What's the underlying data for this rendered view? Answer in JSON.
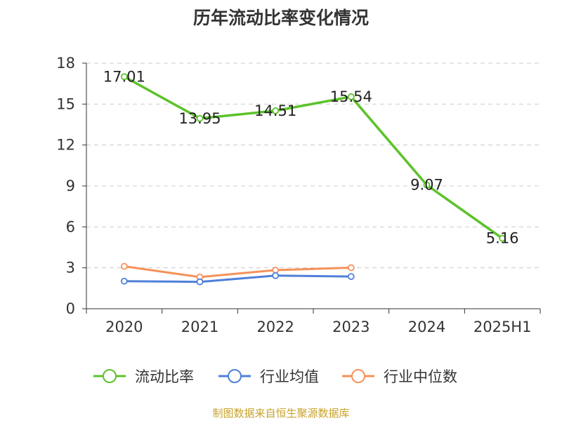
{
  "title": "历年流动比率变化情况",
  "source": "制图数据来自恒生聚源数据库",
  "chart_data": {
    "type": "line",
    "categories": [
      "2020",
      "2021",
      "2022",
      "2023",
      "2024",
      "2025H1"
    ],
    "ylim": [
      0,
      18
    ],
    "yticks": [
      0,
      3,
      6,
      9,
      12,
      15,
      18
    ],
    "grid": true,
    "legend_position": "bottom",
    "series": [
      {
        "name": "流动比率",
        "color": "#5cc22b",
        "values": [
          17.01,
          13.95,
          14.51,
          15.54,
          9.07,
          5.16
        ],
        "labels": [
          "17.01",
          "13.95",
          "14.51",
          "15.54",
          "9.07",
          "5.16"
        ]
      },
      {
        "name": "行业均值",
        "color": "#4f7fd9",
        "values": [
          2.02,
          1.97,
          2.43,
          2.36,
          null,
          null
        ]
      },
      {
        "name": "行业中位数",
        "color": "#f5915a",
        "values": [
          3.11,
          2.32,
          2.83,
          3.01,
          null,
          null
        ]
      }
    ]
  }
}
